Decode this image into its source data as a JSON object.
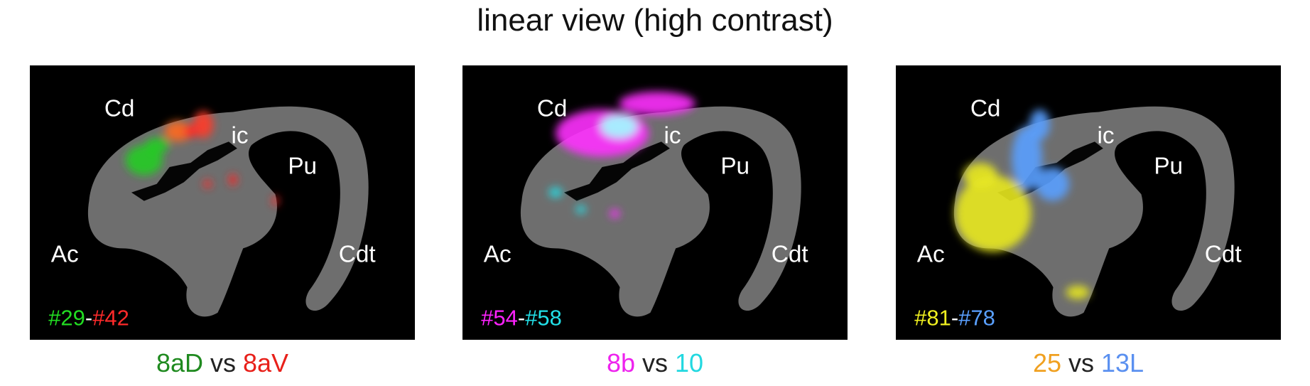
{
  "title": "linear view (high contrast)",
  "panels": [
    {
      "labels": [
        "Cd",
        "ic",
        "Pu",
        "Ac",
        "Cdt"
      ],
      "ids": [
        {
          "text": "#29",
          "color": "#22dd22"
        },
        {
          "text": "-",
          "color": "#ffffff"
        },
        {
          "text": "#42",
          "color": "#ff2a2a"
        }
      ],
      "caption": [
        {
          "text": "8aD",
          "color": "#1f8a1f"
        },
        {
          "text": "vs",
          "color": "#222222"
        },
        {
          "text": "8aV",
          "color": "#e8201a"
        }
      ]
    },
    {
      "labels": [
        "Cd",
        "ic",
        "Pu",
        "Ac",
        "Cdt"
      ],
      "ids": [
        {
          "text": "#54",
          "color": "#ff22ff"
        },
        {
          "text": "-",
          "color": "#ffffff"
        },
        {
          "text": "#58",
          "color": "#22e0e8"
        }
      ],
      "caption": [
        {
          "text": "8b",
          "color": "#ee22ee"
        },
        {
          "text": "vs",
          "color": "#222222"
        },
        {
          "text": "10",
          "color": "#22d8e0"
        }
      ]
    },
    {
      "labels": [
        "Cd",
        "ic",
        "Pu",
        "Ac",
        "Cdt"
      ],
      "ids": [
        {
          "text": "#81",
          "color": "#f0f020"
        },
        {
          "text": "-",
          "color": "#ffffff"
        },
        {
          "text": "#78",
          "color": "#5aa0ff"
        }
      ],
      "caption": [
        {
          "text": "25",
          "color": "#f0a020"
        },
        {
          "text": "vs",
          "color": "#222222"
        },
        {
          "text": "13L",
          "color": "#5a90f0"
        }
      ]
    }
  ]
}
